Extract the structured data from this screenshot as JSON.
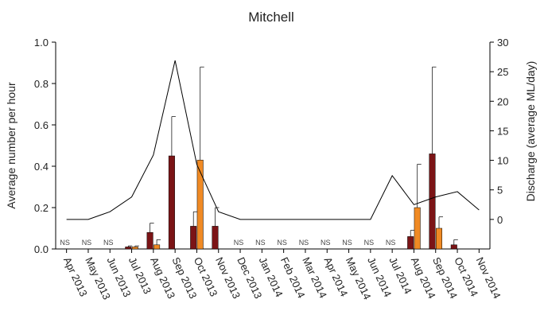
{
  "chart_data": {
    "type": "bar",
    "title": "Mitchell",
    "ylabel": "Average number per hour",
    "y2label": "Discharge (average ML/day)",
    "ylim": [
      0,
      1.0
    ],
    "y2lim": [
      -5,
      30
    ],
    "yticks": [
      "0.0",
      "0.2",
      "0.4",
      "0.6",
      "0.8",
      "1.0"
    ],
    "y2ticks": [
      "0",
      "5",
      "10",
      "15",
      "20",
      "25",
      "30"
    ],
    "categories": [
      "Apr 2013",
      "May 2013",
      "Jun 2013",
      "Jul 2013",
      "Aug 2013",
      "Sep 2013",
      "Oct 2013",
      "Nov 2013",
      "Dec 2013",
      "Jan 2014",
      "Feb 2014",
      "Mar 2014",
      "Apr 2014",
      "May 2014",
      "Jun 2014",
      "Jul 2014",
      "Aug 2014",
      "Sep 2014",
      "Oct 2014",
      "Nov 2014"
    ],
    "ns_label": "NS",
    "ns_categories": [
      0,
      1,
      2,
      8,
      9,
      10,
      11,
      12,
      13,
      14,
      15
    ],
    "bar_series": [
      {
        "color": "#7b1416",
        "values": [
          null,
          null,
          null,
          0.01,
          0.08,
          0.45,
          0.11,
          0.11,
          null,
          null,
          null,
          null,
          null,
          null,
          null,
          null,
          0.06,
          0.46,
          0.02,
          null
        ],
        "errors": [
          null,
          null,
          null,
          0.005,
          0.045,
          0.19,
          0.07,
          0.09,
          null,
          null,
          null,
          null,
          null,
          null,
          null,
          null,
          0.03,
          0.42,
          0.025,
          null
        ]
      },
      {
        "color": "#f08a24",
        "values": [
          null,
          null,
          null,
          0.01,
          0.02,
          null,
          0.43,
          null,
          null,
          null,
          null,
          null,
          null,
          null,
          null,
          null,
          0.2,
          0.1,
          null,
          null
        ],
        "errors": [
          null,
          null,
          null,
          0.005,
          0.025,
          null,
          0.45,
          null,
          null,
          null,
          null,
          null,
          null,
          null,
          null,
          null,
          0.21,
          0.055,
          null,
          null
        ]
      }
    ],
    "line_series": {
      "axis": "right",
      "color": "#000000",
      "values": [
        0,
        0,
        1.3,
        3.8,
        10.9,
        26.9,
        9.3,
        1.3,
        0,
        0,
        0,
        0,
        0,
        0,
        0,
        7.4,
        2.5,
        3.8,
        4.7,
        1.6
      ]
    },
    "grid": false
  }
}
